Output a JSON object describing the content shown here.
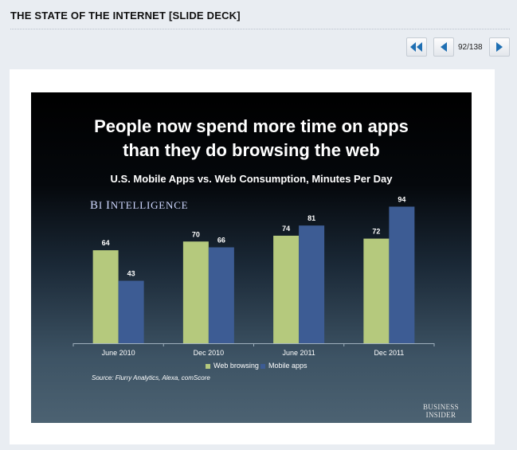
{
  "header": {
    "title": "THE STATE OF THE INTERNET [SLIDE DECK]"
  },
  "nav": {
    "counter": "92/138",
    "first_icon": "double-left-arrow-icon",
    "prev_icon": "left-arrow-icon",
    "next_icon": "right-arrow-icon"
  },
  "slide": {
    "headline": "People now spend more time on apps\nthan they do browsing the web",
    "logo_text": "BI INTELLIGENCE",
    "source": "Source: Flurry Analytics, Alexa, comScore",
    "brand": "BUSINESS\nINSIDER"
  },
  "chart_data": {
    "type": "bar",
    "title": "U.S. Mobile Apps vs. Web Consumption, Minutes Per Day",
    "categories": [
      "June 2010",
      "Dec 2010",
      "June 2011",
      "Dec 2011"
    ],
    "series": [
      {
        "name": "Web browsing",
        "values": [
          64,
          70,
          74,
          72
        ],
        "color": "#b5c97d"
      },
      {
        "name": "Mobile apps",
        "values": [
          43,
          66,
          81,
          94
        ],
        "color": "#3d5c94"
      }
    ],
    "ylim": [
      0,
      100
    ],
    "grid": false,
    "legend": "bottom"
  }
}
